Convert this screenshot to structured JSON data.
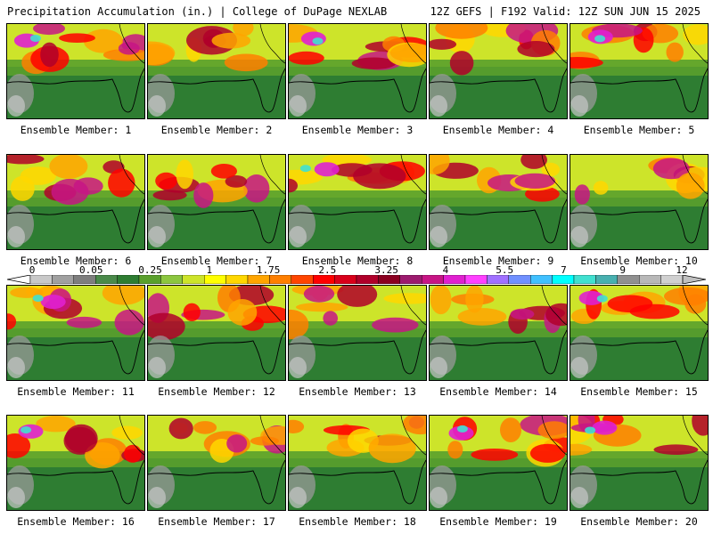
{
  "header": {
    "title_left": "Precipitation Accumulation (in.) | College of DuPage NEXLAB",
    "title_right": "12Z GEFS | F192 Valid: 12Z SUN JUN 15 2025"
  },
  "members": [
    {
      "label": "Ensemble Member: 1"
    },
    {
      "label": "Ensemble Member: 2"
    },
    {
      "label": "Ensemble Member: 3"
    },
    {
      "label": "Ensemble Member: 4"
    },
    {
      "label": "Ensemble Member: 5"
    },
    {
      "label": "Ensemble Member: 6"
    },
    {
      "label": "Ensemble Member: 7"
    },
    {
      "label": "Ensemble Member: 8"
    },
    {
      "label": "Ensemble Member: 9"
    },
    {
      "label": "Ensemble Member: 10"
    },
    {
      "label": "Ensemble Member: 11"
    },
    {
      "label": "Ensemble Member: 12"
    },
    {
      "label": "Ensemble Member: 13"
    },
    {
      "label": "Ensemble Member: 14"
    },
    {
      "label": "Ensemble Member: 15"
    },
    {
      "label": "Ensemble Member: 16"
    },
    {
      "label": "Ensemble Member: 17"
    },
    {
      "label": "Ensemble Member: 18"
    },
    {
      "label": "Ensemble Member: 19"
    },
    {
      "label": "Ensemble Member: 20"
    }
  ],
  "colorbar": {
    "ticks": [
      "0",
      "0.05",
      "0.25",
      "1",
      "1.75",
      "2.5",
      "3.25",
      "4",
      "5.5",
      "7",
      "9",
      "12"
    ],
    "colors": [
      "#c8c8c8",
      "#a0a0a0",
      "#7e7e7e",
      "#4a8a4a",
      "#2e7d32",
      "#5aa02c",
      "#8cc63f",
      "#cde42a",
      "#ffff00",
      "#ffd700",
      "#ffa500",
      "#ff7f00",
      "#ff4500",
      "#ff0000",
      "#d9001a",
      "#b0002a",
      "#8b0020",
      "#9c1a6e",
      "#c71585",
      "#e020d0",
      "#ff40ff",
      "#a070ff",
      "#7090ff",
      "#40c0ff",
      "#00ffff",
      "#40e0d0",
      "#48b0b0",
      "#909090",
      "#b8b8b8",
      "#d0d0d0"
    ]
  }
}
